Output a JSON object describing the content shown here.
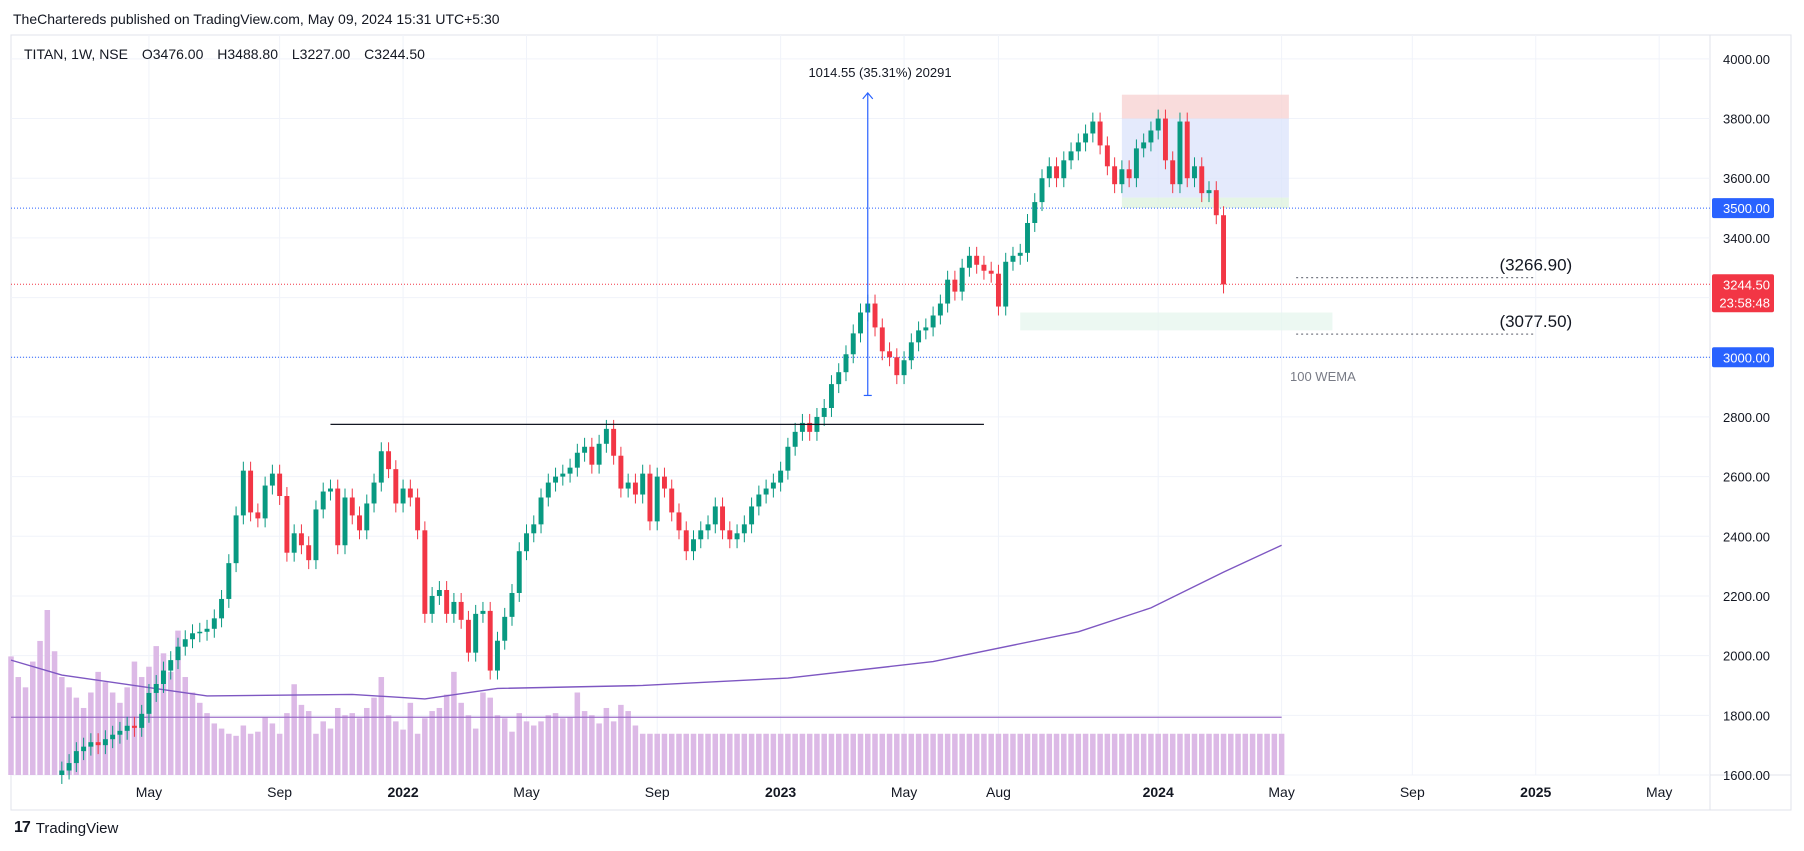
{
  "header": {
    "published_by": "TheChartereds published on TradingView.com, May 09, 2024 15:31 UTC+5:30"
  },
  "footer": {
    "brand": "TradingView",
    "logo_glyph": "17"
  },
  "chart_data": {
    "type": "candlestick",
    "symbol_line": {
      "symbol": "TITAN, 1W, NSE",
      "open": "O3476.00",
      "high": "H3488.80",
      "low": "L3227.00",
      "close": "C3244.50"
    },
    "ylim": [
      1600,
      4080
    ],
    "y_ticks": [
      1600,
      1800,
      2000,
      2200,
      2400,
      2600,
      2800,
      3000,
      3200,
      3400,
      3600,
      3800,
      4000
    ],
    "y_tick_labels": [
      "1600.00",
      "1800.00",
      "2000.00",
      "2200.00",
      "2400.00",
      "2600.00",
      "2800.00",
      "3000.00",
      "3200.00",
      "3400.00",
      "3600.00",
      "3800.00",
      "4000.00"
    ],
    "x_tick_labels": [
      {
        "label": "May",
        "week": 12,
        "bold": false
      },
      {
        "label": "Sep",
        "week": 30,
        "bold": false
      },
      {
        "label": "2022",
        "week": 47,
        "bold": true
      },
      {
        "label": "May",
        "week": 64,
        "bold": false
      },
      {
        "label": "Sep",
        "week": 82,
        "bold": false
      },
      {
        "label": "2023",
        "week": 99,
        "bold": true
      },
      {
        "label": "May",
        "week": 116,
        "bold": false
      },
      {
        "label": "Aug",
        "week": 129,
        "bold": false
      },
      {
        "label": "2024",
        "week": 151,
        "bold": true
      },
      {
        "label": "May",
        "week": 168,
        "bold": false
      },
      {
        "label": "Sep",
        "week": 186,
        "bold": false
      },
      {
        "label": "2025",
        "week": 203,
        "bold": true
      },
      {
        "label": "May",
        "week": 220,
        "bold": false
      }
    ],
    "week_range": [
      -7,
      227
    ],
    "closes": [
      1615,
      1640,
      1680,
      1695,
      1710,
      1700,
      1720,
      1735,
      1748,
      1765,
      1758,
      1805,
      1875,
      1905,
      1950,
      1985,
      2030,
      2055,
      2075,
      2080,
      2090,
      2125,
      2190,
      2310,
      2470,
      2620,
      2480,
      2460,
      2570,
      2610,
      2535,
      2345,
      2410,
      2370,
      2320,
      2490,
      2550,
      2560,
      2370,
      2530,
      2470,
      2420,
      2510,
      2580,
      2685,
      2625,
      2510,
      2560,
      2530,
      2420,
      2140,
      2200,
      2220,
      2140,
      2180,
      2120,
      2010,
      2140,
      2150,
      1950,
      2050,
      2130,
      2210,
      2350,
      2410,
      2440,
      2530,
      2580,
      2600,
      2610,
      2630,
      2680,
      2700,
      2640,
      2710,
      2760,
      2670,
      2560,
      2580,
      2540,
      2610,
      2450,
      2600,
      2560,
      2480,
      2420,
      2350,
      2390,
      2420,
      2440,
      2500,
      2420,
      2390,
      2410,
      2440,
      2500,
      2540,
      2560,
      2580,
      2620,
      2700,
      2750,
      2780,
      2750,
      2800,
      2830,
      2910,
      2950,
      3010,
      3080,
      3150,
      3180,
      3100,
      3020,
      3000,
      2940,
      2990,
      3050,
      3090,
      3100,
      3140,
      3180,
      3260,
      3220,
      3300,
      3340,
      3310,
      3290,
      3280,
      3170,
      3320,
      3340,
      3350,
      3450,
      3520,
      3600,
      3640,
      3600,
      3660,
      3690,
      3720,
      3750,
      3790,
      3710,
      3640,
      3580,
      3630,
      3600,
      3700,
      3720,
      3760,
      3800,
      3660,
      3580,
      3790,
      3600,
      3640,
      3550,
      3560,
      3476,
      3244
    ],
    "candle_start_week": 0,
    "volume": [
      {
        "week": -7,
        "value": 115
      },
      {
        "week": -6,
        "value": 95
      },
      {
        "week": -5,
        "value": 85
      },
      {
        "week": -4,
        "value": 110
      },
      {
        "week": -3,
        "value": 130
      },
      {
        "week": -2,
        "value": 160
      },
      {
        "week": -1,
        "value": 120
      },
      {
        "week": 0,
        "value": 95
      },
      {
        "week": 1,
        "value": 85
      },
      {
        "week": 2,
        "value": 75
      },
      {
        "week": 3,
        "value": 65
      },
      {
        "week": 4,
        "value": 80
      },
      {
        "week": 5,
        "value": 100
      },
      {
        "week": 6,
        "value": 90
      },
      {
        "week": 7,
        "value": 80
      },
      {
        "week": 8,
        "value": 70
      },
      {
        "week": 9,
        "value": 85
      },
      {
        "week": 10,
        "value": 110
      },
      {
        "week": 11,
        "value": 95
      },
      {
        "week": 12,
        "value": 105
      },
      {
        "week": 13,
        "value": 125
      },
      {
        "week": 14,
        "value": 118
      },
      {
        "week": 15,
        "value": 100
      },
      {
        "week": 16,
        "value": 140
      },
      {
        "week": 17,
        "value": 95
      },
      {
        "week": 18,
        "value": 80
      },
      {
        "week": 19,
        "value": 70
      },
      {
        "week": 20,
        "value": 60
      },
      {
        "week": 21,
        "value": 50
      },
      {
        "week": 22,
        "value": 45
      },
      {
        "week": 23,
        "value": 40
      },
      {
        "week": 24,
        "value": 38
      },
      {
        "week": 25,
        "value": 48
      },
      {
        "week": 26,
        "value": 40
      },
      {
        "week": 27,
        "value": 42
      },
      {
        "week": 28,
        "value": 56
      },
      {
        "week": 29,
        "value": 50
      },
      {
        "week": 30,
        "value": 40
      },
      {
        "week": 31,
        "value": 60
      },
      {
        "week": 32,
        "value": 88
      },
      {
        "week": 33,
        "value": 68
      },
      {
        "week": 34,
        "value": 62
      },
      {
        "week": 35,
        "value": 40
      },
      {
        "week": 36,
        "value": 52
      },
      {
        "week": 37,
        "value": 45
      },
      {
        "week": 38,
        "value": 65
      },
      {
        "week": 39,
        "value": 58
      },
      {
        "week": 40,
        "value": 60
      },
      {
        "week": 41,
        "value": 55
      },
      {
        "week": 42,
        "value": 65
      },
      {
        "week": 43,
        "value": 75
      },
      {
        "week": 44,
        "value": 95
      },
      {
        "week": 45,
        "value": 58
      },
      {
        "week": 46,
        "value": 52
      },
      {
        "week": 47,
        "value": 44
      },
      {
        "week": 48,
        "value": 70
      },
      {
        "week": 49,
        "value": 40
      },
      {
        "week": 50,
        "value": 55
      },
      {
        "week": 51,
        "value": 62
      },
      {
        "week": 52,
        "value": 65
      },
      {
        "week": 53,
        "value": 78
      },
      {
        "week": 54,
        "value": 100
      },
      {
        "week": 55,
        "value": 70
      },
      {
        "week": 56,
        "value": 58
      },
      {
        "week": 57,
        "value": 45
      },
      {
        "week": 58,
        "value": 80
      },
      {
        "week": 59,
        "value": 75
      },
      {
        "week": 60,
        "value": 58
      },
      {
        "week": 61,
        "value": 55
      },
      {
        "week": 62,
        "value": 42
      },
      {
        "week": 63,
        "value": 60
      },
      {
        "week": 64,
        "value": 52
      },
      {
        "week": 65,
        "value": 48
      },
      {
        "week": 66,
        "value": 52
      },
      {
        "week": 67,
        "value": 58
      },
      {
        "week": 68,
        "value": 60
      },
      {
        "week": 69,
        "value": 55
      },
      {
        "week": 70,
        "value": 56
      },
      {
        "week": 71,
        "value": 80
      },
      {
        "week": 72,
        "value": 62
      },
      {
        "week": 73,
        "value": 58
      },
      {
        "week": 74,
        "value": 50
      },
      {
        "week": 75,
        "value": 65
      },
      {
        "week": 76,
        "value": 52
      },
      {
        "week": 77,
        "value": 68
      },
      {
        "week": 78,
        "value": 62
      },
      {
        "week": 79,
        "value": 48
      },
      {
        "week": 80,
        "value": 40
      },
      {
        "week": 81,
        "value": 40
      },
      {
        "week": 82,
        "value": 40
      },
      {
        "week": 83,
        "value": 40
      },
      {
        "week": 84,
        "value": 40
      },
      {
        "week": 85,
        "value": 40
      },
      {
        "week": 86,
        "value": 40
      },
      {
        "week": 87,
        "value": 40
      },
      {
        "week": 88,
        "value": 40
      },
      {
        "week": 89,
        "value": 40
      },
      {
        "week": 90,
        "value": 40
      },
      {
        "week": 91,
        "value": 40
      },
      {
        "week": 92,
        "value": 40
      },
      {
        "week": 93,
        "value": 40
      },
      {
        "week": 94,
        "value": 40
      },
      {
        "week": 95,
        "value": 40
      },
      {
        "week": 96,
        "value": 40
      },
      {
        "week": 97,
        "value": 40
      },
      {
        "week": 98,
        "value": 40
      },
      {
        "week": 99,
        "value": 40
      },
      {
        "week": 100,
        "value": 40
      },
      {
        "week": 101,
        "value": 40
      },
      {
        "week": 102,
        "value": 40
      },
      {
        "week": 103,
        "value": 40
      },
      {
        "week": 104,
        "value": 40
      },
      {
        "week": 105,
        "value": 40
      },
      {
        "week": 106,
        "value": 40
      },
      {
        "week": 107,
        "value": 40
      },
      {
        "week": 108,
        "value": 40
      },
      {
        "week": 109,
        "value": 40
      },
      {
        "week": 110,
        "value": 40
      },
      {
        "week": 111,
        "value": 40
      },
      {
        "week": 112,
        "value": 40
      },
      {
        "week": 113,
        "value": 40
      },
      {
        "week": 114,
        "value": 40
      },
      {
        "week": 115,
        "value": 40
      },
      {
        "week": 116,
        "value": 40
      },
      {
        "week": 117,
        "value": 40
      },
      {
        "week": 118,
        "value": 40
      },
      {
        "week": 119,
        "value": 40
      },
      {
        "week": 120,
        "value": 40
      },
      {
        "week": 121,
        "value": 40
      },
      {
        "week": 122,
        "value": 40
      },
      {
        "week": 123,
        "value": 40
      },
      {
        "week": 124,
        "value": 40
      },
      {
        "week": 125,
        "value": 40
      },
      {
        "week": 126,
        "value": 40
      },
      {
        "week": 127,
        "value": 40
      },
      {
        "week": 128,
        "value": 40
      },
      {
        "week": 129,
        "value": 40
      },
      {
        "week": 130,
        "value": 40
      },
      {
        "week": 131,
        "value": 40
      },
      {
        "week": 132,
        "value": 40
      },
      {
        "week": 133,
        "value": 40
      },
      {
        "week": 134,
        "value": 40
      },
      {
        "week": 135,
        "value": 40
      },
      {
        "week": 136,
        "value": 40
      },
      {
        "week": 137,
        "value": 40
      },
      {
        "week": 138,
        "value": 40
      },
      {
        "week": 139,
        "value": 40
      },
      {
        "week": 140,
        "value": 40
      },
      {
        "week": 141,
        "value": 40
      },
      {
        "week": 142,
        "value": 40
      },
      {
        "week": 143,
        "value": 40
      },
      {
        "week": 144,
        "value": 40
      },
      {
        "week": 145,
        "value": 40
      },
      {
        "week": 146,
        "value": 40
      },
      {
        "week": 147,
        "value": 40
      },
      {
        "week": 148,
        "value": 40
      },
      {
        "week": 149,
        "value": 40
      },
      {
        "week": 150,
        "value": 40
      },
      {
        "week": 151,
        "value": 40
      },
      {
        "week": 152,
        "value": 40
      },
      {
        "week": 153,
        "value": 40
      },
      {
        "week": 154,
        "value": 40
      },
      {
        "week": 155,
        "value": 40
      },
      {
        "week": 156,
        "value": 40
      },
      {
        "week": 157,
        "value": 40
      },
      {
        "week": 158,
        "value": 40
      },
      {
        "week": 159,
        "value": 40
      },
      {
        "week": 160,
        "value": 40
      },
      {
        "week": 161,
        "value": 40
      },
      {
        "week": 162,
        "value": 40
      },
      {
        "week": 163,
        "value": 40
      },
      {
        "week": 164,
        "value": 40
      },
      {
        "week": 165,
        "value": 40
      },
      {
        "week": 166,
        "value": 40
      },
      {
        "week": 167,
        "value": 40
      },
      {
        "week": 168,
        "value": 40
      }
    ],
    "volume_ma_level": 0.35,
    "wema_100": [
      {
        "week": -7,
        "value": 1985
      },
      {
        "week": 0,
        "value": 1935
      },
      {
        "week": 20,
        "value": 1865
      },
      {
        "week": 40,
        "value": 1870
      },
      {
        "week": 50,
        "value": 1855
      },
      {
        "week": 60,
        "value": 1890
      },
      {
        "week": 80,
        "value": 1900
      },
      {
        "week": 100,
        "value": 1925
      },
      {
        "week": 120,
        "value": 1980
      },
      {
        "week": 140,
        "value": 2080
      },
      {
        "week": 150,
        "value": 2160
      },
      {
        "week": 160,
        "value": 2280
      },
      {
        "week": 168,
        "value": 2370
      }
    ],
    "wema_label": "100 WEMA",
    "resistance_line": {
      "value": 2775,
      "from_week": -7,
      "to_week": 127
    },
    "measure": {
      "week": 111,
      "from": 2872,
      "to": 3886,
      "label": "1014.55 (35.31%) 20291"
    },
    "h_lines": [
      {
        "value": 3500,
        "label": "3500.00",
        "color": "#2962ff"
      },
      {
        "value": 3000,
        "label": "3000.00",
        "color": "#2962ff"
      },
      {
        "value": 3244.5,
        "label": "3244.50",
        "sublabel": "23:58:48",
        "color": "#f23645"
      }
    ],
    "targets": [
      {
        "value": 3266.9,
        "label": "(3266.90)"
      },
      {
        "value": 3077.5,
        "label": "(3077.50)"
      }
    ],
    "zones": [
      {
        "from_week": 146,
        "to_week": 169,
        "low": 3800,
        "high": 3880,
        "color": "#f7d0d0"
      },
      {
        "from_week": 146,
        "to_week": 169,
        "low": 3535,
        "high": 3800,
        "color": "#dbe3fb"
      },
      {
        "from_week": 146,
        "to_week": 169,
        "low": 3500,
        "high": 3535,
        "color": "#dcf2de"
      },
      {
        "from_week": 132,
        "to_week": 175,
        "low": 3090,
        "high": 3150,
        "color": "#e6f5ee"
      }
    ],
    "colors": {
      "up": "#089981",
      "down": "#f23645",
      "volume": "#dcb9e6",
      "wema": "#7e57c2",
      "grid": "#f0f3fa",
      "axis_text": "#131722"
    }
  }
}
